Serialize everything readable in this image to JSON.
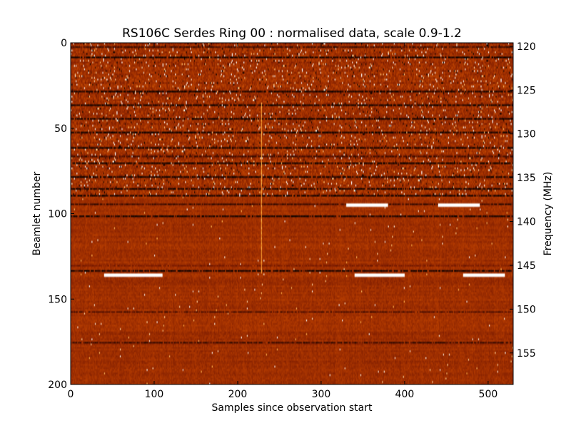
{
  "chart_data": {
    "type": "heatmap",
    "title": "RS106C Serdes Ring 00 : normalised data, scale 0.9-1.2",
    "xlabel": "Samples since observation start",
    "ylabel": "Beamlet number",
    "y2label": "Frequency (MHz)",
    "xlim": [
      0,
      530
    ],
    "ylim": [
      200,
      0
    ],
    "y2lim": [
      119.6,
      158.6
    ],
    "color_scale": [
      0.9,
      1.2
    ],
    "colormap": "gist_heat",
    "colormap_stops": [
      "#000000",
      "#7a1a00",
      "#b23a00",
      "#e06a10",
      "#ffb040",
      "#ffffff"
    ],
    "x_ticks": [
      0,
      100,
      200,
      300,
      400,
      500
    ],
    "y_ticks": [
      0,
      50,
      100,
      150,
      200
    ],
    "y2_ticks": [
      120,
      125,
      130,
      135,
      140,
      145,
      150,
      155
    ],
    "grid": false,
    "noisy_rows_end": 90,
    "strong_feature_rows": [
      {
        "row": 2,
        "value": 0.92
      },
      {
        "row": 8,
        "value": 0.9
      },
      {
        "row": 28,
        "value": 0.9
      },
      {
        "row": 36,
        "value": 0.9
      },
      {
        "row": 44,
        "value": 0.9
      },
      {
        "row": 52,
        "value": 0.9
      },
      {
        "row": 61,
        "value": 0.9
      },
      {
        "row": 66,
        "value": 0.92
      },
      {
        "row": 70,
        "value": 0.9
      },
      {
        "row": 78,
        "value": 0.9
      },
      {
        "row": 85,
        "value": 0.9
      },
      {
        "row": 89,
        "value": 0.9
      },
      {
        "row": 94,
        "value": 0.92
      },
      {
        "row": 101,
        "value": 0.9
      },
      {
        "row": 130,
        "value": 0.95
      },
      {
        "row": 133,
        "value": 0.9
      },
      {
        "row": 157,
        "value": 0.93
      },
      {
        "row": 175,
        "value": 0.92
      }
    ],
    "bright_segments": [
      {
        "row": 94,
        "x_start": 330,
        "x_end": 380,
        "value": 1.2
      },
      {
        "row": 94,
        "x_start": 440,
        "x_end": 490,
        "value": 1.2
      },
      {
        "row": 135,
        "x_start": 40,
        "x_end": 110,
        "value": 1.2
      },
      {
        "row": 135,
        "x_start": 340,
        "x_end": 400,
        "value": 1.2
      },
      {
        "row": 135,
        "x_start": 470,
        "x_end": 520,
        "value": 1.2
      }
    ],
    "bright_columns": [
      {
        "x": 228,
        "row_start": 35,
        "row_end": 135,
        "value": 1.15
      }
    ]
  }
}
